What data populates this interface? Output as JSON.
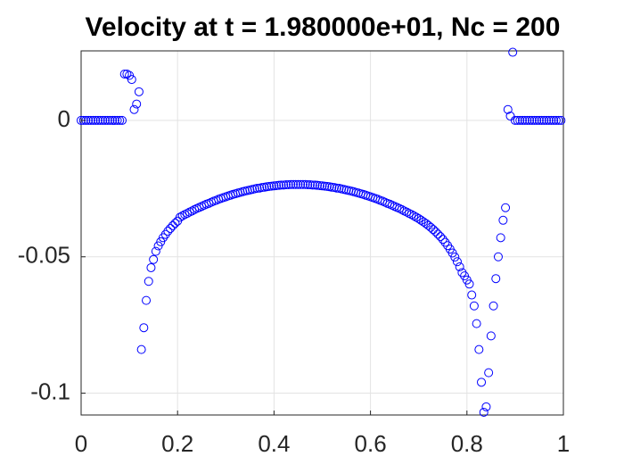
{
  "chart_data": {
    "type": "scatter",
    "title": "Velocity at t = 1.980000e+01, Nc = 200",
    "color": "#0000ff",
    "grid": true,
    "xlim": [
      0,
      1
    ],
    "xticks": [
      0,
      0.2,
      0.4,
      0.6,
      0.8,
      1
    ],
    "ylim": [
      -0.108,
      0.0255
    ],
    "yticks": [
      -0.1,
      -0.05,
      0
    ],
    "x": [
      0,
      0.005,
      0.01,
      0.015,
      0.02,
      0.025,
      0.03,
      0.035,
      0.04,
      0.045,
      0.05,
      0.055,
      0.06,
      0.065,
      0.07,
      0.075,
      0.08,
      0.085,
      0.09,
      0.095,
      0.1,
      0.105,
      0.11,
      0.115,
      0.12,
      0.125,
      0.13,
      0.135,
      0.14,
      0.145,
      0.15,
      0.155,
      0.16,
      0.165,
      0.17,
      0.175,
      0.18,
      0.185,
      0.19,
      0.195,
      0.2,
      0.205,
      0.21,
      0.215,
      0.22,
      0.225,
      0.23,
      0.235,
      0.24,
      0.245,
      0.25,
      0.255,
      0.26,
      0.265,
      0.27,
      0.275,
      0.28,
      0.285,
      0.29,
      0.295,
      0.3,
      0.305,
      0.31,
      0.315,
      0.32,
      0.325,
      0.33,
      0.335,
      0.34,
      0.345,
      0.35,
      0.355,
      0.36,
      0.365,
      0.37,
      0.375,
      0.38,
      0.385,
      0.39,
      0.395,
      0.4,
      0.405,
      0.41,
      0.415,
      0.42,
      0.425,
      0.43,
      0.435,
      0.44,
      0.445,
      0.45,
      0.455,
      0.46,
      0.465,
      0.47,
      0.475,
      0.48,
      0.485,
      0.49,
      0.495,
      0.5,
      0.505,
      0.51,
      0.515,
      0.52,
      0.525,
      0.53,
      0.535,
      0.54,
      0.545,
      0.55,
      0.555,
      0.56,
      0.565,
      0.57,
      0.575,
      0.58,
      0.585,
      0.59,
      0.595,
      0.6,
      0.605,
      0.61,
      0.615,
      0.62,
      0.625,
      0.63,
      0.635,
      0.64,
      0.645,
      0.65,
      0.655,
      0.66,
      0.665,
      0.67,
      0.675,
      0.68,
      0.685,
      0.69,
      0.695,
      0.7,
      0.705,
      0.71,
      0.715,
      0.72,
      0.725,
      0.73,
      0.735,
      0.74,
      0.745,
      0.75,
      0.755,
      0.76,
      0.765,
      0.77,
      0.775,
      0.78,
      0.785,
      0.79,
      0.795,
      0.8,
      0.805,
      0.81,
      0.815,
      0.82,
      0.825,
      0.83,
      0.835,
      0.84,
      0.845,
      0.85,
      0.855,
      0.86,
      0.865,
      0.87,
      0.875,
      0.88,
      0.885,
      0.89,
      0.895,
      0.9,
      0.905,
      0.91,
      0.915,
      0.92,
      0.925,
      0.93,
      0.935,
      0.94,
      0.945,
      0.95,
      0.955,
      0.96,
      0.965,
      0.97,
      0.975,
      0.98,
      0.985,
      0.99,
      0.995
    ],
    "values": [
      0,
      0,
      0,
      0,
      0,
      0,
      0,
      0,
      0,
      0,
      0,
      0,
      0,
      0,
      0,
      0,
      0,
      0,
      0.017,
      0.017,
      0.0165,
      0.015,
      0.004,
      0.006,
      0.0105,
      -0.084,
      -0.076,
      -0.066,
      -0.059,
      -0.054,
      -0.051,
      -0.048,
      -0.046,
      -0.0445,
      -0.043,
      -0.0418,
      -0.0406,
      -0.0396,
      -0.0386,
      -0.0377,
      -0.0369,
      -0.0355,
      -0.035,
      -0.0345,
      -0.0341,
      -0.0336,
      -0.0332,
      -0.0327,
      -0.0323,
      -0.0319,
      -0.0315,
      -0.0311,
      -0.0307,
      -0.0304,
      -0.03,
      -0.0296,
      -0.0293,
      -0.0289,
      -0.0286,
      -0.0283,
      -0.028,
      -0.0277,
      -0.0274,
      -0.0271,
      -0.0269,
      -0.0266,
      -0.0264,
      -0.0261,
      -0.0259,
      -0.0257,
      -0.0255,
      -0.0253,
      -0.0251,
      -0.0249,
      -0.0248,
      -0.0246,
      -0.0245,
      -0.0243,
      -0.0242,
      -0.0241,
      -0.024,
      -0.0239,
      -0.0238,
      -0.0237,
      -0.0237,
      -0.0236,
      -0.0236,
      -0.0235,
      -0.0235,
      -0.0235,
      -0.0235,
      -0.0235,
      -0.0235,
      -0.0235,
      -0.0236,
      -0.0236,
      -0.0237,
      -0.0237,
      -0.0238,
      -0.0239,
      -0.024,
      -0.0241,
      -0.0242,
      -0.0243,
      -0.0245,
      -0.0246,
      -0.0248,
      -0.0249,
      -0.0251,
      -0.0253,
      -0.0255,
      -0.0257,
      -0.0259,
      -0.0261,
      -0.0264,
      -0.0266,
      -0.0269,
      -0.0271,
      -0.0274,
      -0.0277,
      -0.028,
      -0.0283,
      -0.0286,
      -0.0289,
      -0.0293,
      -0.0296,
      -0.03,
      -0.0304,
      -0.0307,
      -0.0311,
      -0.0315,
      -0.0319,
      -0.0323,
      -0.0327,
      -0.0332,
      -0.0336,
      -0.0341,
      -0.0345,
      -0.035,
      -0.0355,
      -0.036,
      -0.0366,
      -0.0372,
      -0.0378,
      -0.0385,
      -0.0392,
      -0.04,
      -0.0408,
      -0.0417,
      -0.0426,
      -0.0436,
      -0.0447,
      -0.0459,
      -0.0472,
      -0.0486,
      -0.0501,
      -0.0518,
      -0.0537,
      -0.0558,
      -0.057,
      -0.0585,
      -0.06,
      -0.064,
      -0.068,
      -0.0745,
      -0.084,
      -0.096,
      -0.107,
      -0.105,
      -0.0925,
      -0.079,
      -0.068,
      -0.058,
      -0.05,
      -0.043,
      -0.0366,
      -0.032,
      0.004,
      0.0016,
      0.025,
      0,
      0,
      0,
      0,
      0,
      0,
      0,
      0,
      0,
      0,
      0,
      0,
      0,
      0,
      0,
      0,
      0,
      0,
      0,
      0
    ]
  }
}
